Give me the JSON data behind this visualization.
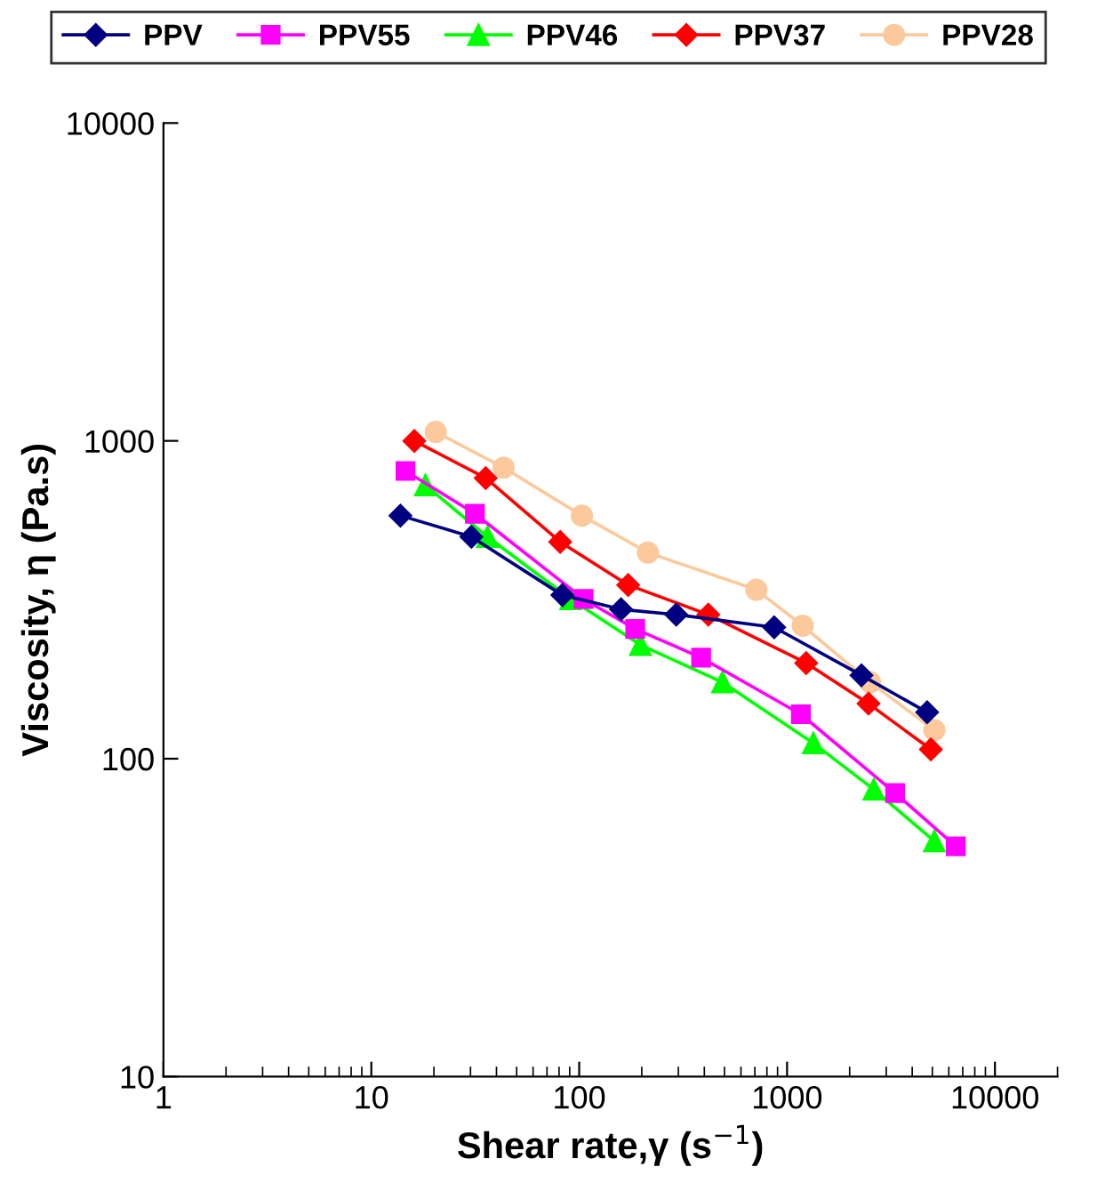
{
  "chart_data": {
    "type": "line",
    "xlabel": "Shear rate,γ (s$^{−1}$)",
    "ylabel": "Viscosity, η (Pa.s)",
    "log": "xy",
    "xlim": [
      1,
      20000
    ],
    "xticks": [
      1,
      10,
      100,
      1000,
      10000
    ],
    "ylim": [
      10,
      10000
    ],
    "yticks": [
      10,
      100,
      1000,
      10000
    ],
    "grid": false,
    "legend": "top",
    "series": [
      {
        "name": "PPV",
        "color": "#000080",
        "marker": "diamond",
        "x": [
          13.8,
          30.3,
          83,
          159,
          293,
          867,
          2280,
          4720
        ],
        "values": [
          582,
          499,
          327,
          295,
          284,
          259,
          183,
          140
        ]
      },
      {
        "name": "PPV55",
        "color": "#ff00ff",
        "marker": "square",
        "x": [
          14.6,
          31.5,
          105,
          186,
          386,
          1165,
          3310,
          6480
        ],
        "values": [
          804,
          590,
          318,
          256,
          208,
          138,
          78,
          53
        ]
      },
      {
        "name": "PPV46",
        "color": "#00ff00",
        "marker": "triangle",
        "x": [
          18.2,
          36.2,
          91,
          197,
          489,
          1337,
          2615,
          5110
        ],
        "values": [
          725,
          499,
          318,
          228,
          174,
          112,
          80,
          55
        ]
      },
      {
        "name": "PPV37",
        "color": "#ff0000",
        "marker": "diamond",
        "x": [
          16.1,
          35.5,
          81,
          172,
          418,
          1236,
          2465,
          4920
        ],
        "values": [
          1000,
          764,
          481,
          352,
          284,
          200,
          149,
          107
        ]
      },
      {
        "name": "PPV28",
        "color": "#fbc99b",
        "marker": "circle",
        "x": [
          20.4,
          43.3,
          103,
          214,
          712,
          1190,
          2510,
          5110
        ],
        "values": [
          1067,
          824,
          582,
          445,
          340,
          262,
          174,
          123
        ]
      }
    ]
  }
}
